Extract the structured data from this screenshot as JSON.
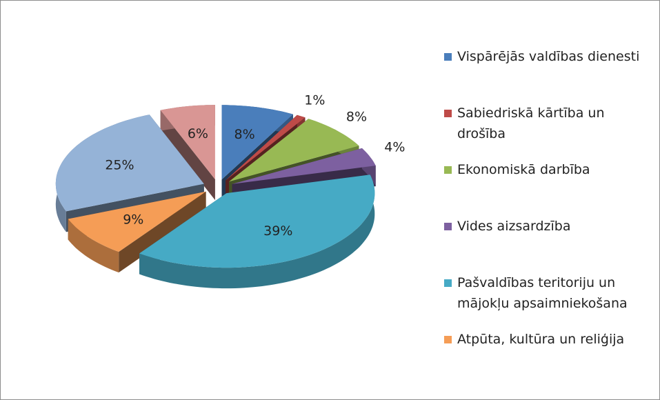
{
  "chart_data": {
    "type": "pie3d",
    "categories": [
      "Vispārējās valdības dienesti",
      "Sabiedriskā kārtība un drošība",
      "Ekonomiskā darbība",
      "Vides aizsardzība",
      "Pašvaldības teritoriju un mājokļu apsaimniekošana",
      "Atpūta, kultūra un reliģija",
      null,
      null
    ],
    "values": [
      8,
      1,
      8,
      4,
      39,
      9,
      25,
      6
    ],
    "value_labels": [
      "8%",
      "1%",
      "8%",
      "4%",
      "39%",
      "9%",
      "25%",
      "6%"
    ],
    "colors": [
      "#4a7ebb",
      "#be4b48",
      "#98b954",
      "#7d60a0",
      "#46aac5",
      "#f59d56",
      "#95b3d7",
      "#d99694"
    ],
    "legend": "right"
  }
}
